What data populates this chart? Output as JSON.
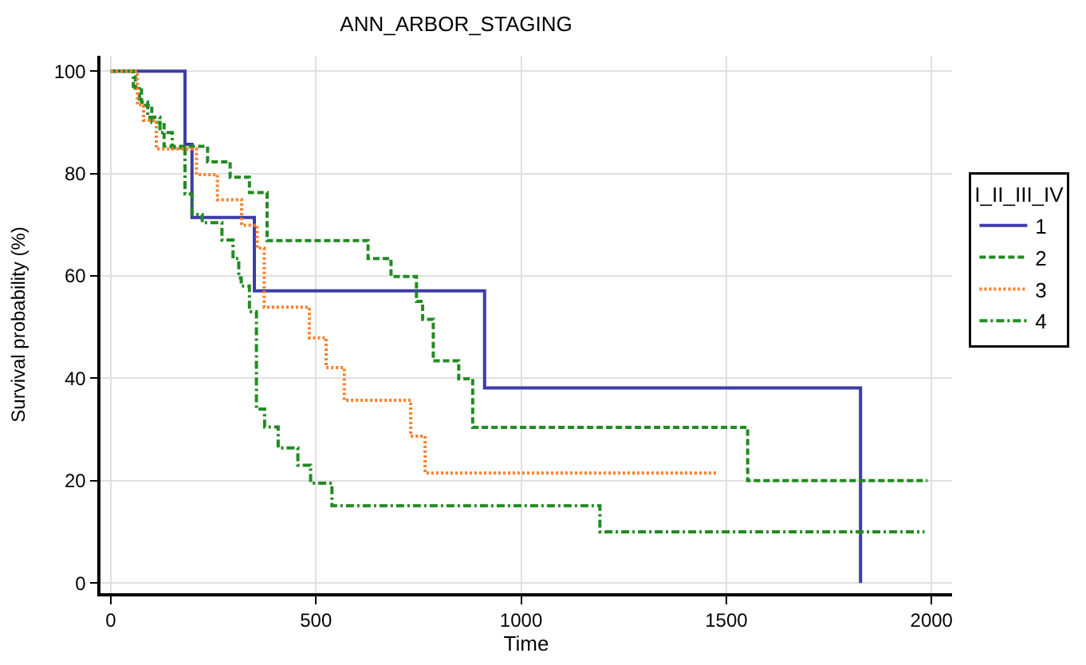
{
  "chart_data": {
    "type": "step",
    "title": "ANN_ARBOR_STAGING",
    "xlabel": "Time",
    "ylabel": "Survival probability (%)",
    "legend_title": "I_II_III_IV",
    "legend": "right",
    "grid": true,
    "xlim": [
      -25,
      2050
    ],
    "ylim": [
      -2,
      103
    ],
    "xticks": [
      0,
      500,
      1000,
      1500,
      2000
    ],
    "yticks": [
      0,
      20,
      40,
      60,
      80,
      100
    ],
    "series": [
      {
        "name": "1",
        "color": "#3c3ca8",
        "line_style": "solid",
        "x": [
          0,
          181,
          198,
          350,
          911,
          1827
        ],
        "values": [
          100,
          85.7,
          71.4,
          57.1,
          38.1,
          0
        ]
      },
      {
        "name": "2",
        "color": "#228b22",
        "line_style": "dashed",
        "x": [
          0,
          60,
          75,
          100,
          130,
          236,
          291,
          338,
          381,
          627,
          683,
          745,
          760,
          786,
          848,
          882,
          1552,
          1990
        ],
        "values": [
          100,
          96.7,
          93.3,
          90,
          85.3,
          82.3,
          79.3,
          76.3,
          66.9,
          63.4,
          59.9,
          55,
          51.5,
          43.4,
          39.9,
          30.4,
          20,
          20
        ]
      },
      {
        "name": "3",
        "color": "#ff7f2a",
        "line_style": "dotted",
        "x": [
          0,
          65,
          80,
          111,
          209,
          260,
          319,
          357,
          374,
          484,
          525,
          569,
          731,
          766,
          1480
        ],
        "values": [
          100,
          93.4,
          90.4,
          84.8,
          79.8,
          74.9,
          69.9,
          65.4,
          53.9,
          47.9,
          42.1,
          35.7,
          28.7,
          21.5,
          21.5
        ]
      },
      {
        "name": "4",
        "color": "#228b22",
        "line_style": "dashdot",
        "x": [
          0,
          55,
          70,
          90,
          120,
          150,
          181,
          198,
          223,
          271,
          298,
          312,
          318,
          338,
          355,
          375,
          408,
          456,
          487,
          539,
          1192,
          1983
        ],
        "values": [
          100,
          97,
          94,
          91,
          88,
          85,
          76,
          72,
          70.4,
          67,
          63.4,
          59.6,
          58,
          53,
          34,
          30.5,
          26.4,
          23,
          19.5,
          15.1,
          10,
          10
        ]
      }
    ]
  }
}
